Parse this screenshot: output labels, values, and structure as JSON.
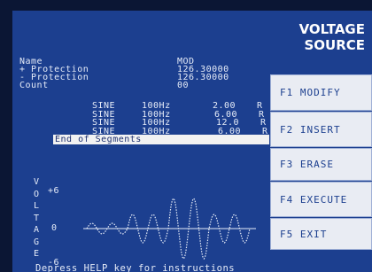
{
  "header": {
    "title_line1": "VOLTAGE",
    "title_line2": "SOURCE"
  },
  "fields": [
    {
      "label": "Name",
      "value": "MOD"
    },
    {
      "label": "+ Protection",
      "value": "126.30000"
    },
    {
      "label": "- Protection",
      "value": "126.30000"
    },
    {
      "label": "Count",
      "value": "00"
    }
  ],
  "segments": [
    {
      "shape": "SINE",
      "freq": "100Hz",
      "amp": "2.00",
      "unit": "R"
    },
    {
      "shape": "SINE",
      "freq": "100Hz",
      "amp": "6.00",
      "unit": "R"
    },
    {
      "shape": "SINE",
      "freq": "100Hz",
      "amp": "12.0",
      "unit": "R"
    },
    {
      "shape": "SINE",
      "freq": "100Hz",
      "amp": "6.00",
      "unit": "R"
    }
  ],
  "end_of_segments": "End of Segments",
  "plot": {
    "axis_letters": [
      "V",
      "O",
      "L",
      "T",
      "A",
      "G",
      "E"
    ],
    "tick_top": "+6",
    "tick_mid": "0",
    "tick_bottom": "-6"
  },
  "buttons": [
    "F1 MODIFY",
    "F2 INSERT",
    "F3 ERASE",
    "F4 EXECUTE",
    "F5 EXIT"
  ],
  "footer": "Depress HELP key for instructions"
}
